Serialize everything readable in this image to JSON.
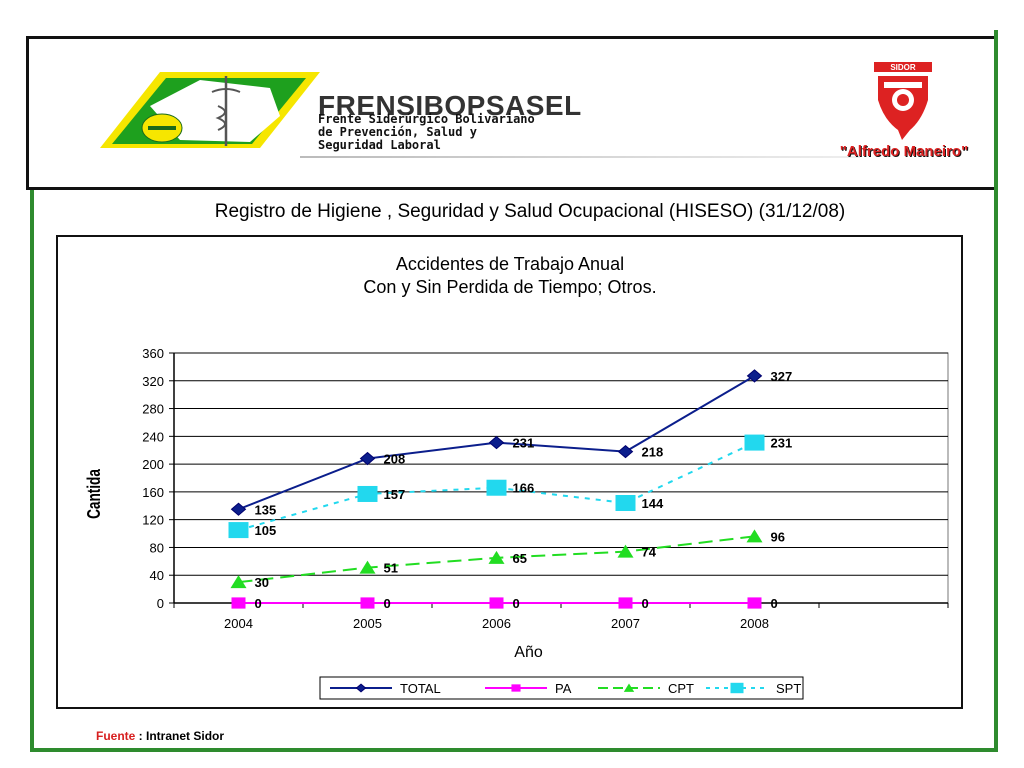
{
  "header": {
    "logo_title": "FRENSIBOPSASEL",
    "logo_subtitle_lines": [
      "Frente Siderúrgico Bolivariano",
      "de Prevención, Salud y",
      "Seguridad Laboral"
    ],
    "sidor_brand": "SIDOR",
    "sidor_name": "\"Alfredo Maneiro\""
  },
  "report_title": "Registro de Higiene , Seguridad y Salud Ocupacional (HISESO) (31/12/08)",
  "source": {
    "label": "Fuente",
    "separator": " :  ",
    "value": "Intranet Sidor"
  },
  "colors": {
    "frame_green": "#2e8b2e",
    "total": "#0b1e8c",
    "pa": "#ff00ff",
    "cpt": "#22dd22",
    "spt": "#22d8ee",
    "logo_green": "#1ea01e",
    "logo_yellow": "#f6e600"
  },
  "chart_data": {
    "type": "line",
    "title_lines": [
      "Accidentes de Trabajo Anual",
      "Con y Sin Perdida de Tiempo; Otros."
    ],
    "xlabel": "Año",
    "ylabel": "Cantida",
    "categories": [
      "2004",
      "2005",
      "2006",
      "2007",
      "2008"
    ],
    "ylim": [
      0,
      360
    ],
    "yticks": [
      0,
      40,
      80,
      120,
      160,
      200,
      240,
      280,
      320,
      360
    ],
    "grid": true,
    "legend_position": "bottom",
    "series": [
      {
        "name": "TOTAL",
        "values": [
          135,
          208,
          231,
          218,
          327
        ],
        "marker": "diamond",
        "line": "solid"
      },
      {
        "name": "PA",
        "values": [
          0,
          0,
          0,
          0,
          0
        ],
        "marker": "square",
        "line": "solid"
      },
      {
        "name": "CPT",
        "values": [
          30,
          51,
          65,
          74,
          96
        ],
        "marker": "triangle",
        "line": "dashed"
      },
      {
        "name": "SPT",
        "values": [
          105,
          157,
          166,
          144,
          231
        ],
        "marker": "square",
        "line": "dotted"
      }
    ]
  }
}
